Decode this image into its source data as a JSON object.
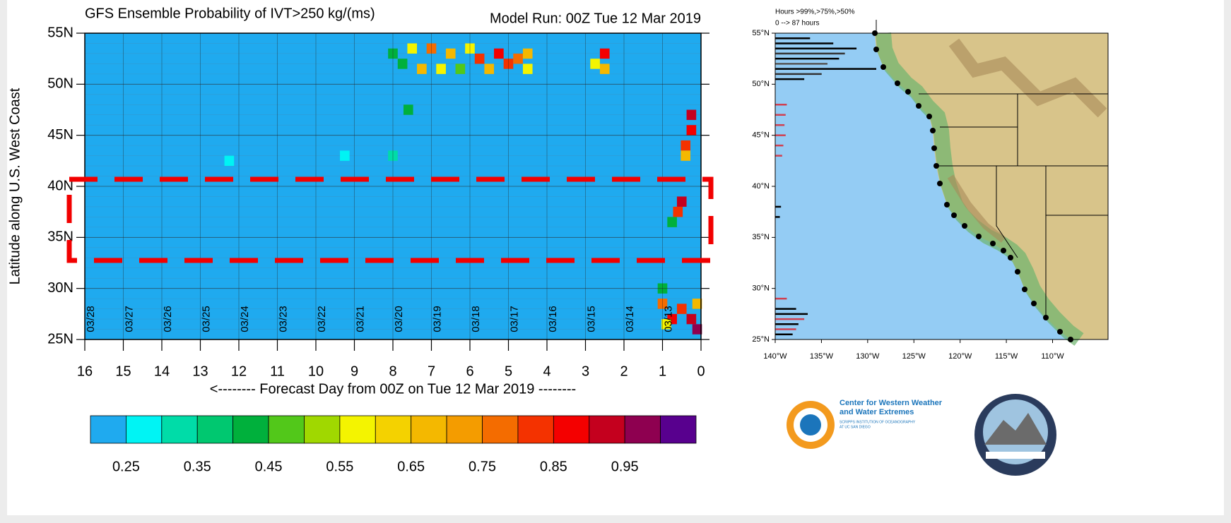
{
  "chart_data": [
    {
      "type": "heatmap",
      "title": "GFS Ensemble Probability of IVT>250 kg/(ms)",
      "subtitle": "Model Run: 00Z Tue 12 Mar 2019",
      "y_label": "Latitude along U.S. West Coast",
      "x_label": "<-------- Forecast Day from 00Z on Tue 12 Mar 2019 --------",
      "xlim": [
        16,
        0
      ],
      "ylim": [
        25,
        55
      ],
      "xticks": [
        16,
        15,
        14,
        13,
        12,
        11,
        10,
        9,
        8,
        7,
        6,
        5,
        4,
        3,
        2,
        1,
        0
      ],
      "yticks": [
        {
          "value": 25,
          "label": "25N"
        },
        {
          "value": 30,
          "label": "30N"
        },
        {
          "value": 35,
          "label": "35N"
        },
        {
          "value": 40,
          "label": "40N"
        },
        {
          "value": 45,
          "label": "45N"
        },
        {
          "value": 50,
          "label": "50N"
        },
        {
          "value": 55,
          "label": "55N"
        }
      ],
      "grid": true,
      "date_labels": {
        "days": [
          16,
          15,
          14,
          13,
          12,
          11,
          10,
          9,
          8,
          7,
          6,
          5,
          4,
          3,
          2,
          1
        ],
        "texts": [
          "03/28",
          "03/27",
          "03/26",
          "03/25",
          "03/24",
          "03/23",
          "03/22",
          "03/21",
          "03/20",
          "03/19",
          "03/18",
          "03/17",
          "03/16",
          "03/15",
          "03/14",
          "03/13"
        ]
      },
      "x": [
        7.5,
        7.0,
        6.5,
        6.0,
        5.75,
        5.25,
        5.0,
        4.75,
        4.5,
        7.25,
        6.75,
        6.25,
        5.5,
        4.5,
        7.75,
        8.0,
        2.5,
        2.5,
        2.75,
        0.25,
        0.25,
        0.4,
        0.4,
        0.5,
        0.6,
        0.75,
        0.1,
        0.25,
        0.5,
        0.75,
        1.0,
        0.9,
        0.1,
        1.0,
        7.6,
        8.0,
        9.25,
        12.25
      ],
      "y": [
        53.5,
        53.5,
        53,
        53.5,
        52.5,
        53,
        52,
        52.5,
        53,
        51.5,
        51.5,
        51.5,
        51.5,
        51.5,
        52,
        53,
        53,
        51.5,
        52,
        47,
        45.5,
        44,
        43,
        38.5,
        37.5,
        36.5,
        26,
        27,
        28,
        27,
        28.5,
        26.5,
        28.5,
        30,
        47.5,
        43,
        43,
        42.5
      ],
      "values": [
        0.6,
        0.75,
        0.65,
        0.55,
        0.8,
        0.9,
        0.85,
        0.75,
        0.65,
        0.7,
        0.6,
        0.5,
        0.7,
        0.6,
        0.45,
        0.4,
        0.9,
        0.7,
        0.55,
        0.95,
        0.9,
        0.8,
        0.7,
        0.95,
        0.85,
        0.4,
        0.99,
        0.95,
        0.85,
        0.9,
        0.75,
        0.6,
        0.7,
        0.45,
        0.4,
        0.35,
        0.3,
        0.3
      ],
      "colorbar": {
        "lim": [
          0.2,
          1.05
        ],
        "ticks": [
          0.25,
          0.35,
          0.45,
          0.55,
          0.65,
          0.75,
          0.85,
          0.95
        ],
        "colors": [
          "#1faaef",
          "#00f4f4",
          "#00dca8",
          "#00c870",
          "#00b03c",
          "#52c81a",
          "#a0d800",
          "#f4f400",
          "#f4d200",
          "#f4b800",
          "#f49c00",
          "#f46c00",
          "#f43200",
          "#f40000",
          "#c4001e",
          "#8e0050",
          "#58008e"
        ]
      }
    },
    {
      "type": "map",
      "note": "Hours >99%,>75%,>50%",
      "note2": "0 --> 87 hours",
      "hours_lim": [
        0,
        87
      ],
      "ylim": [
        25,
        55
      ],
      "yticks": [
        {
          "value": 25,
          "label": "25°N"
        },
        {
          "value": 30,
          "label": "30°N"
        },
        {
          "value": 35,
          "label": "35°N"
        },
        {
          "value": 40,
          "label": "40°N"
        },
        {
          "value": 45,
          "label": "45°N"
        },
        {
          "value": 50,
          "label": "50°N"
        },
        {
          "value": 55,
          "label": "55°N"
        }
      ],
      "xlim": [
        -140,
        -104
      ],
      "xticks": [
        {
          "value": -140,
          "label": "140°W"
        },
        {
          "value": -135,
          "label": "135°W"
        },
        {
          "value": -130,
          "label": "130°W"
        },
        {
          "value": -125,
          "label": "125°W"
        },
        {
          "value": -120,
          "label": "120°W"
        },
        {
          "value": -115,
          "label": "115°W"
        },
        {
          "value": -110,
          "label": "110°W"
        }
      ],
      "lat": [
        54.5,
        54,
        53.5,
        53,
        52.5,
        52,
        51.5,
        51,
        50.5,
        48,
        47,
        46,
        45,
        44,
        43,
        38,
        37,
        29,
        28,
        27.5,
        27,
        26.5,
        26,
        25.5
      ],
      "hours": [
        30,
        50,
        70,
        60,
        55,
        45,
        87,
        40,
        25,
        10,
        9,
        8,
        9,
        7,
        6,
        5,
        4,
        10,
        18,
        28,
        25,
        20,
        18,
        15
      ],
      "colors": [
        "#000000",
        "#000000",
        "#000000",
        "#333333",
        "#000000",
        "#555555",
        "#000000",
        "#333333",
        "#000000",
        "#d04050",
        "#d04050",
        "#d04050",
        "#d04050",
        "#d04050",
        "#d04050",
        "#000000",
        "#000000",
        "#d04050",
        "#000000",
        "#000000",
        "#d04050",
        "#000000",
        "#d04050",
        "#000000"
      ]
    }
  ],
  "logos": {
    "cw3e": [
      "Center for Western Weather",
      "and Water Extremes"
    ],
    "cw3e_sub": [
      "SCRIPPS INSTITUTION OF OCEANOGRAPHY",
      "AT UC SAN DIEGO"
    ]
  }
}
